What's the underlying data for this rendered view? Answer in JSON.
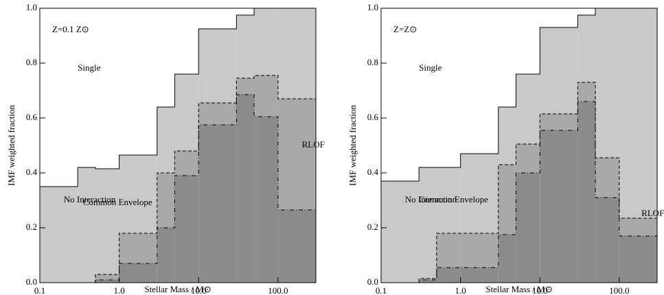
{
  "chart_data": [
    {
      "type": "histogram",
      "annotation": "Z=0.1 Z⊙",
      "xlabel": "Stellar Mass / M⊙",
      "ylabel": "IMF weighted fraction",
      "xscale": "log",
      "xlim": [
        0.1,
        300
      ],
      "ylim": [
        0,
        1
      ],
      "xticks": [
        0.1,
        {
          "value": 1,
          "label": "1.0"
        },
        {
          "value": 10,
          "label": "10.0"
        },
        {
          "value": 100,
          "label": "100.0"
        }
      ],
      "yticks": [
        {
          "value": 0,
          "label": "0.0"
        },
        0.2,
        0.4,
        0.6,
        0.8,
        {
          "value": 1,
          "label": "1.0"
        }
      ],
      "bins": [
        0.1,
        0.3,
        0.5,
        1,
        3,
        5,
        10,
        30,
        50,
        100,
        300
      ],
      "series": [
        {
          "name": "Common Envelope",
          "color": "#8c8c8c",
          "linestyle": "dashdot",
          "values": [
            0,
            0,
            0.01,
            0.07,
            0.2,
            0.39,
            0.575,
            0.685,
            0.605,
            0.265
          ]
        },
        {
          "name": "RLOF",
          "color": "#a9a9a9",
          "linestyle": "dashed",
          "values": [
            0,
            0,
            0.02,
            0.11,
            0.2,
            0.09,
            0.08,
            0.06,
            0.15,
            0.405
          ]
        },
        {
          "name": "No Interaction",
          "color": "#c9c9c9",
          "linestyle": "solid",
          "values": [
            0.35,
            0.42,
            0.385,
            0.285,
            0.24,
            0.28,
            0.27,
            0.23,
            0.245,
            0.33
          ]
        },
        {
          "name": "Single",
          "color": "#ffffff",
          "values": [
            0.65,
            0.58,
            0.585,
            0.535,
            0.36,
            0.24,
            0.075,
            0.025,
            0,
            0
          ]
        }
      ]
    },
    {
      "type": "histogram",
      "annotation": "Z=Z⊙",
      "xlabel": "Stellar Mass / M⊙",
      "ylabel": "IMF weighted fraction",
      "xscale": "log",
      "xlim": [
        0.1,
        300
      ],
      "ylim": [
        0,
        1
      ],
      "xticks": [
        0.1,
        {
          "value": 1,
          "label": "1.0"
        },
        {
          "value": 10,
          "label": "10.0"
        },
        {
          "value": 100,
          "label": "100.0"
        }
      ],
      "yticks": [
        {
          "value": 0,
          "label": "0.0"
        },
        0.2,
        0.4,
        0.6,
        0.8,
        {
          "value": 1,
          "label": "1.0"
        }
      ],
      "bins": [
        0.1,
        0.3,
        0.5,
        1,
        3,
        5,
        10,
        30,
        50,
        100,
        300
      ],
      "series": [
        {
          "name": "Common Envelope",
          "color": "#8c8c8c",
          "linestyle": "dashdot",
          "values": [
            0,
            0.01,
            0.055,
            0.055,
            0.175,
            0.4,
            0.555,
            0.66,
            0.31,
            0.17
          ]
        },
        {
          "name": "RLOF",
          "color": "#a9a9a9",
          "linestyle": "dashed",
          "values": [
            0,
            0.005,
            0.125,
            0.125,
            0.255,
            0.105,
            0.06,
            0.07,
            0.145,
            0.065
          ]
        },
        {
          "name": "No Interaction",
          "color": "#c9c9c9",
          "linestyle": "solid",
          "values": [
            0.37,
            0.405,
            0.24,
            0.29,
            0.21,
            0.255,
            0.315,
            0.245,
            0.545,
            0.765
          ]
        },
        {
          "name": "Single",
          "color": "#ffffff",
          "values": [
            0.63,
            0.58,
            0.58,
            0.53,
            0.36,
            0.24,
            0.07,
            0.025,
            0,
            0
          ]
        }
      ]
    }
  ]
}
